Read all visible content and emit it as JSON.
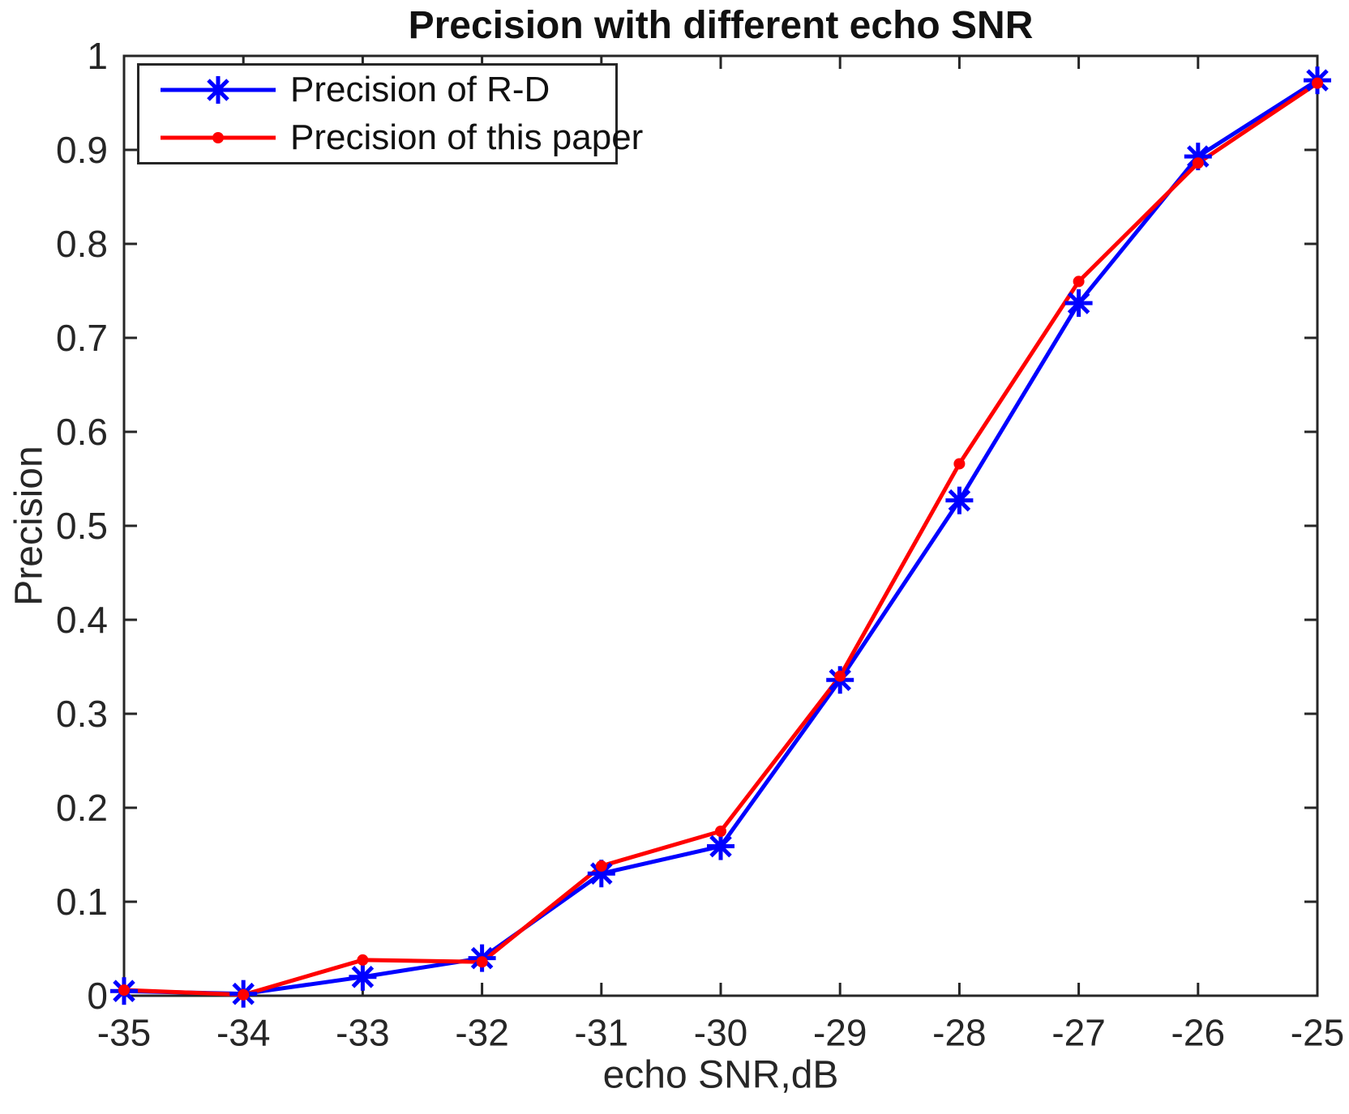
{
  "chart_data": {
    "type": "line",
    "title": "Precision with different echo SNR",
    "xlabel": "echo SNR,dB",
    "ylabel": "Precision",
    "xlim": [
      -35,
      -25
    ],
    "ylim": [
      0,
      1
    ],
    "grid": false,
    "legend_position": "top-left",
    "x_ticks": [
      -35,
      -34,
      -33,
      -32,
      -31,
      -30,
      -29,
      -28,
      -27,
      -26,
      -25
    ],
    "x_tick_labels": [
      "-35",
      "-34",
      "-33",
      "-32",
      "-31",
      "-30",
      "-29",
      "-28",
      "-27",
      "-26",
      "-25"
    ],
    "y_ticks": [
      0,
      0.1,
      0.2,
      0.3,
      0.4,
      0.5,
      0.6,
      0.7,
      0.8,
      0.9,
      1
    ],
    "y_tick_labels": [
      "0",
      "0.1",
      "0.2",
      "0.3",
      "0.4",
      "0.5",
      "0.6",
      "0.7",
      "0.8",
      "0.9",
      "1"
    ],
    "x": [
      -35,
      -34,
      -33,
      -32,
      -31,
      -30,
      -29,
      -28,
      -27,
      -26,
      -25
    ],
    "series": [
      {
        "name": "Precision of R-D",
        "color": "#0000ff",
        "marker": "asterisk",
        "values": [
          0.005,
          0.002,
          0.02,
          0.04,
          0.13,
          0.159,
          0.336,
          0.527,
          0.737,
          0.893,
          0.974
        ]
      },
      {
        "name": "Precision of this paper",
        "color": "#ff0000",
        "marker": "dot",
        "values": [
          0.006,
          0.001,
          0.038,
          0.036,
          0.138,
          0.175,
          0.34,
          0.566,
          0.76,
          0.886,
          0.971
        ]
      }
    ]
  },
  "axis_color": "#262626",
  "background_color": "#ffffff"
}
